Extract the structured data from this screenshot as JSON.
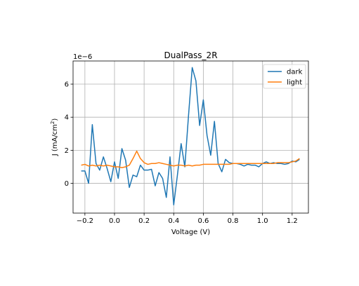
{
  "chart_data": {
    "type": "line",
    "title": "DualPass_2R",
    "xlabel": "Voltage (V)",
    "ylabel": "J (mA/cm²)",
    "ylabel_main": "J (mA/cm",
    "ylabel_sup": "2",
    "ylabel_end": ")",
    "y_offset_label": "1e−6",
    "xlim": [
      -0.28,
      1.31
    ],
    "ylim": [
      -1.8,
      7.4
    ],
    "x_ticks": [
      -0.2,
      0.0,
      0.2,
      0.4,
      0.6,
      0.8,
      1.0,
      1.2
    ],
    "x_tick_labels": [
      "−0.2",
      "0.0",
      "0.2",
      "0.4",
      "0.6",
      "0.8",
      "1.0",
      "1.2"
    ],
    "y_ticks": [
      0,
      2,
      4,
      6
    ],
    "y_tick_labels": [
      "0",
      "2",
      "4",
      "6"
    ],
    "grid": true,
    "legend_position": "top-right",
    "series": [
      {
        "name": "dark",
        "color": "#1f77b4",
        "x": [
          -0.225,
          -0.2,
          -0.175,
          -0.15,
          -0.125,
          -0.1,
          -0.075,
          -0.05,
          -0.025,
          0.0,
          0.025,
          0.05,
          0.075,
          0.1,
          0.125,
          0.15,
          0.175,
          0.2,
          0.225,
          0.25,
          0.275,
          0.3,
          0.325,
          0.35,
          0.375,
          0.4,
          0.425,
          0.45,
          0.475,
          0.5,
          0.525,
          0.55,
          0.575,
          0.6,
          0.625,
          0.65,
          0.675,
          0.7,
          0.725,
          0.75,
          0.775,
          0.8,
          0.825,
          0.85,
          0.875,
          0.9,
          0.925,
          0.95,
          0.975,
          1.0,
          1.025,
          1.05,
          1.075,
          1.1,
          1.125,
          1.15,
          1.175,
          1.2,
          1.225,
          1.25
        ],
        "y": [
          0.75,
          0.75,
          0.0,
          3.55,
          1.2,
          0.8,
          1.6,
          0.9,
          0.1,
          1.3,
          0.3,
          2.1,
          1.4,
          -0.25,
          0.5,
          0.4,
          1.1,
          0.8,
          0.8,
          0.85,
          -0.15,
          0.65,
          0.3,
          -0.85,
          1.6,
          -1.3,
          0.5,
          2.4,
          1.0,
          4.1,
          7.0,
          6.2,
          3.5,
          5.05,
          2.9,
          1.7,
          3.75,
          1.2,
          0.7,
          1.45,
          1.25,
          1.2,
          1.2,
          1.15,
          1.05,
          1.15,
          1.1,
          1.1,
          1.0,
          1.2,
          1.3,
          1.2,
          1.25,
          1.2,
          1.2,
          1.15,
          1.2,
          1.35,
          1.3,
          1.45
        ]
      },
      {
        "name": "light",
        "color": "#ff7f0e",
        "x": [
          -0.225,
          -0.2,
          -0.175,
          -0.15,
          -0.125,
          -0.1,
          -0.075,
          -0.05,
          -0.025,
          0.0,
          0.025,
          0.05,
          0.075,
          0.1,
          0.125,
          0.15,
          0.175,
          0.2,
          0.225,
          0.25,
          0.275,
          0.3,
          0.325,
          0.35,
          0.375,
          0.4,
          0.425,
          0.45,
          0.475,
          0.5,
          0.525,
          0.55,
          0.575,
          0.6,
          0.625,
          0.65,
          0.675,
          0.7,
          0.725,
          0.75,
          0.775,
          0.8,
          0.825,
          0.85,
          0.875,
          0.9,
          0.925,
          0.95,
          0.975,
          1.0,
          1.025,
          1.05,
          1.075,
          1.1,
          1.125,
          1.15,
          1.175,
          1.2,
          1.225,
          1.25
        ],
        "y": [
          1.1,
          1.15,
          1.05,
          1.1,
          1.05,
          1.1,
          1.05,
          1.1,
          1.05,
          1.0,
          1.0,
          0.95,
          1.0,
          1.1,
          1.5,
          1.95,
          1.5,
          1.25,
          1.15,
          1.2,
          1.2,
          1.25,
          1.2,
          1.15,
          1.1,
          1.05,
          1.1,
          1.1,
          1.05,
          1.1,
          1.05,
          1.1,
          1.1,
          1.15,
          1.15,
          1.15,
          1.15,
          1.15,
          1.15,
          1.15,
          1.15,
          1.2,
          1.2,
          1.2,
          1.2,
          1.2,
          1.2,
          1.2,
          1.2,
          1.2,
          1.2,
          1.2,
          1.2,
          1.25,
          1.25,
          1.25,
          1.25,
          1.3,
          1.35,
          1.5
        ]
      }
    ]
  }
}
